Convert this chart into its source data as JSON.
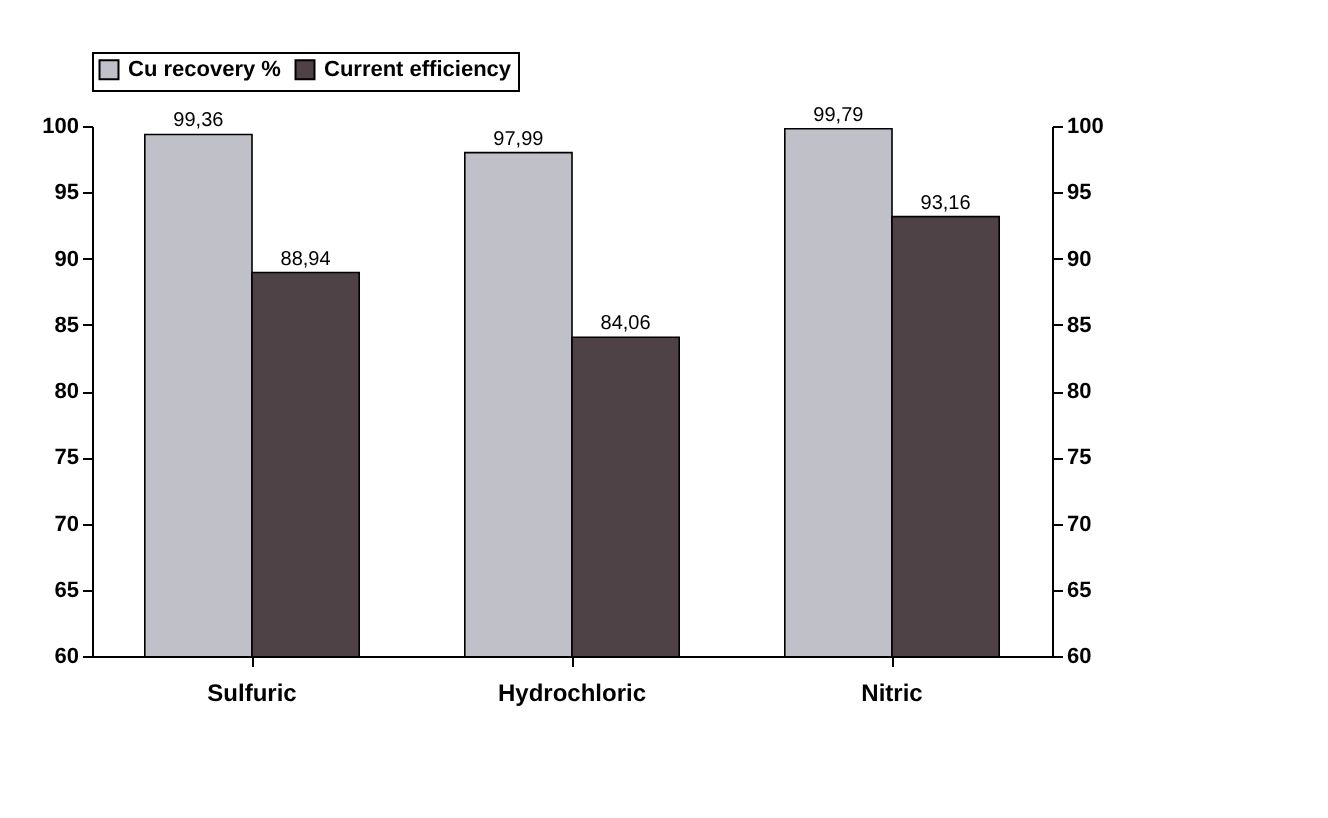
{
  "chart_data": {
    "type": "bar",
    "categories": [
      "Sulfuric",
      "Hydrochloric",
      "Nitric"
    ],
    "series": [
      {
        "name": "Cu recovery %",
        "color": "#c0c0c8",
        "values": [
          99.36,
          97.99,
          99.79
        ],
        "value_labels": [
          "99,36",
          "97,99",
          "99,79"
        ]
      },
      {
        "name": "Current efficiency",
        "color": "#4f4246",
        "values": [
          88.94,
          84.06,
          93.16
        ],
        "value_labels": [
          "88,94",
          "84,06",
          "93,16"
        ]
      }
    ],
    "ylim": [
      60,
      100
    ],
    "yticks": [
      60,
      65,
      70,
      75,
      80,
      85,
      90,
      95,
      100
    ],
    "y2lim": [
      60,
      100
    ],
    "y2ticks": [
      60,
      65,
      70,
      75,
      80,
      85,
      90,
      95,
      100
    ],
    "grid": false,
    "legend": "top"
  }
}
